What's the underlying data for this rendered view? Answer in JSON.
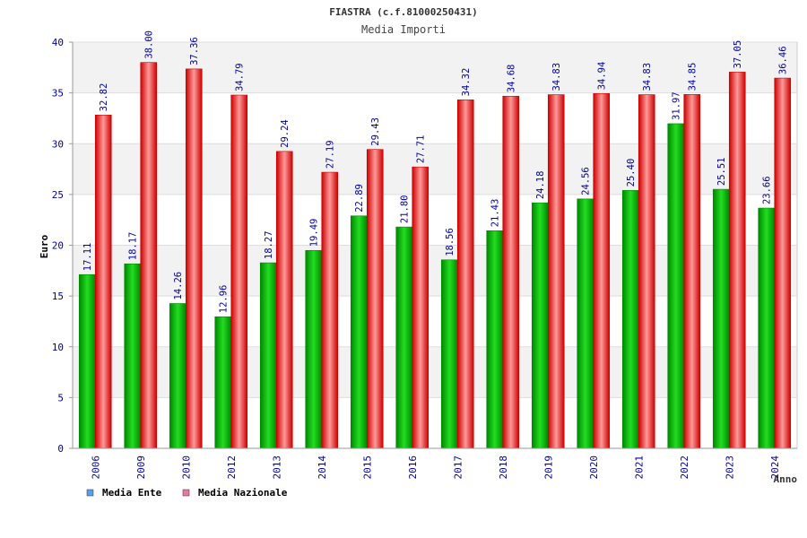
{
  "colors": {
    "ente_dark": "#008800",
    "ente_light": "#22dd22",
    "naz_dark": "#cc0000",
    "naz_light": "#ff9999",
    "text_blue": "#000099",
    "band": "#f2f2f2",
    "legend_ente": "#5aa0e6",
    "legend_naz": "#e67aa0"
  },
  "chart_data": {
    "type": "bar",
    "title": "FIASTRA (c.f.81000250431)",
    "subtitle": "Media Importi",
    "ylabel": "Euro",
    "xlabel": "Anno",
    "ylim": [
      0,
      40
    ],
    "yticks": [
      "0",
      "5",
      "10",
      "15",
      "20",
      "25",
      "30",
      "35",
      "40"
    ],
    "categories": [
      "2006",
      "2009",
      "2010",
      "2012",
      "2013",
      "2014",
      "2015",
      "2016",
      "2017",
      "2018",
      "2019",
      "2020",
      "2021",
      "2022",
      "2023",
      "2024"
    ],
    "series": [
      {
        "name": "Media Ente",
        "values": [
          17.11,
          18.17,
          14.26,
          12.96,
          18.27,
          19.49,
          22.89,
          21.8,
          18.56,
          21.43,
          24.18,
          24.56,
          25.4,
          31.97,
          25.51,
          23.66
        ],
        "labels": [
          "17.11",
          "18.17",
          "14.26",
          "12.96",
          "18.27",
          "19.49",
          "22.89",
          "21.80",
          "18.56",
          "21.43",
          "24.18",
          "24.56",
          "25.40",
          "31.97",
          "25.51",
          "23.66"
        ]
      },
      {
        "name": "Media Nazionale",
        "values": [
          32.82,
          38.0,
          37.36,
          34.79,
          29.24,
          27.19,
          29.43,
          27.71,
          34.32,
          34.68,
          34.83,
          34.94,
          34.83,
          34.85,
          37.05,
          36.46
        ],
        "labels": [
          "32.82",
          "38.00",
          "37.36",
          "34.79",
          "29.24",
          "27.19",
          "29.43",
          "27.71",
          "34.32",
          "34.68",
          "34.83",
          "34.94",
          "34.83",
          "34.85",
          "37.05",
          "36.46"
        ]
      }
    ],
    "legend": [
      "Media Ente",
      "Media Nazionale"
    ]
  }
}
